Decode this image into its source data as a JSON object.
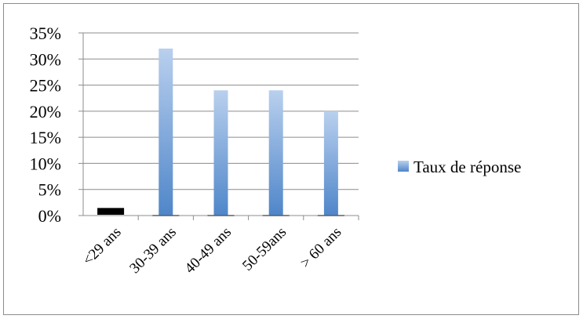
{
  "chart_data": {
    "type": "bar",
    "categories": [
      "<29 ans",
      "30-39 ans",
      "40-49 ans",
      "50-59ans",
      "> 60 ans"
    ],
    "series": [
      {
        "name": "Taux de réponse",
        "values": [
          0.01,
          0.32,
          0.24,
          0.24,
          0.2
        ]
      }
    ],
    "y_ticks": [
      "0%",
      "5%",
      "10%",
      "15%",
      "20%",
      "25%",
      "30%",
      "35%"
    ],
    "ylim": [
      0,
      0.35
    ],
    "y_format": "percent",
    "grid": true,
    "legend": "right",
    "colors": {
      "bar_top": "#b9d0ee",
      "bar_bottom": "#4f86c9",
      "first_bar": "#000000",
      "grid": "#8c8c8c",
      "axis": "#8c8c8c"
    }
  }
}
